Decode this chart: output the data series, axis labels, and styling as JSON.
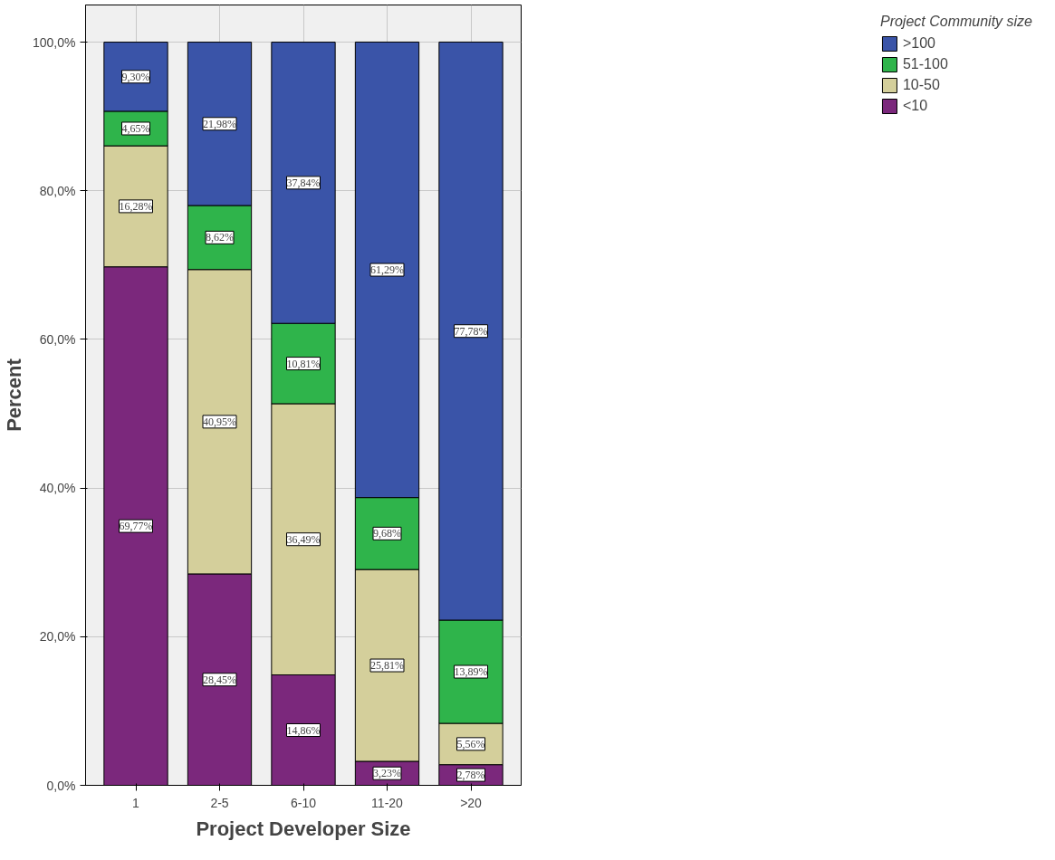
{
  "chart_data": {
    "type": "bar",
    "stacked": true,
    "xlabel": "Project Developer Size",
    "ylabel": "Percent",
    "legend_title": "Project Community size",
    "legend": "right",
    "grid": true,
    "categories": [
      "1",
      "2-5",
      "6-10",
      "11-20",
      ">20"
    ],
    "ylim": [
      0,
      105
    ],
    "yticks": [
      {
        "value": 0,
        "label": "0,0%"
      },
      {
        "value": 20,
        "label": "20,0%"
      },
      {
        "value": 40,
        "label": "40,0%"
      },
      {
        "value": 60,
        "label": "60,0%"
      },
      {
        "value": 80,
        "label": "80,0%"
      },
      {
        "value": 100,
        "label": "100,0%"
      }
    ],
    "series": [
      {
        "name": "<10",
        "color": "#7b287c",
        "values": [
          69.77,
          28.45,
          14.86,
          3.23,
          2.78
        ],
        "value_labels": [
          "69,77%",
          "28,45%",
          "14,86%",
          "3,23%",
          "2,78%"
        ]
      },
      {
        "name": "10-50",
        "color": "#d4cf9b",
        "values": [
          16.28,
          40.95,
          36.49,
          25.81,
          5.56
        ],
        "value_labels": [
          "16,28%",
          "40,95%",
          "36,49%",
          "25,81%",
          "5,56%"
        ]
      },
      {
        "name": "51-100",
        "color": "#2fb44b",
        "values": [
          4.65,
          8.62,
          10.81,
          9.68,
          13.89
        ],
        "value_labels": [
          "4,65%",
          "8,62%",
          "10,81%",
          "9,68%",
          "13,89%"
        ]
      },
      {
        "name": ">100",
        "color": "#3a54a8",
        "values": [
          9.3,
          21.98,
          37.84,
          61.29,
          77.78
        ],
        "value_labels": [
          "9,30%",
          "21,98%",
          "37,84%",
          "61,29%",
          "77,78%"
        ]
      }
    ]
  }
}
